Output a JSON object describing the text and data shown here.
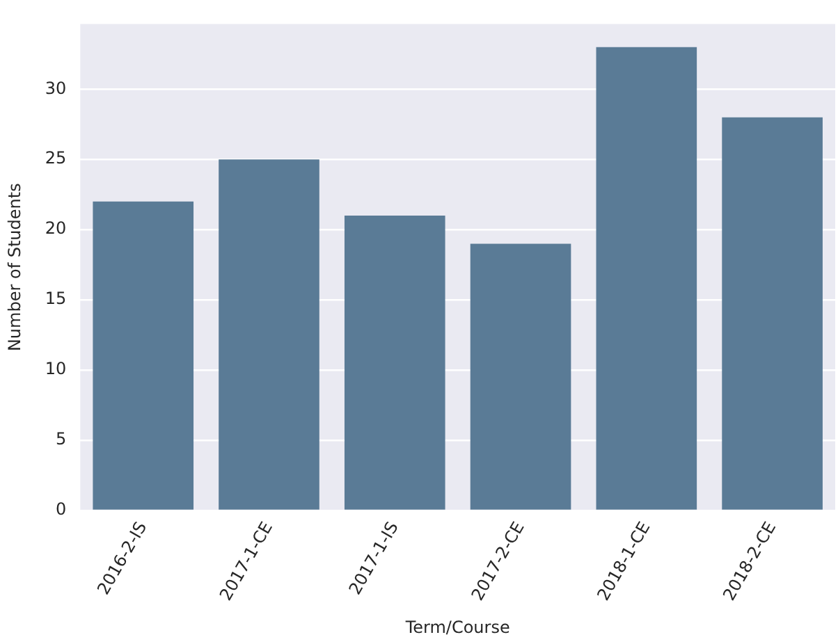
{
  "chart_data": {
    "type": "bar",
    "xlabel": "Term/Course",
    "ylabel": "Number of Students",
    "categories": [
      "2016-2-IS",
      "2017-1-CE",
      "2017-1-IS",
      "2017-2-CE",
      "2018-1-CE",
      "2018-2-CE"
    ],
    "values": [
      22,
      25,
      21,
      19,
      33,
      28
    ],
    "color": "#5a7b96",
    "ylim": [
      0,
      34.65
    ],
    "yticks": [
      0,
      5,
      10,
      15,
      20,
      25,
      30
    ],
    "grid": "y",
    "legend": false
  }
}
